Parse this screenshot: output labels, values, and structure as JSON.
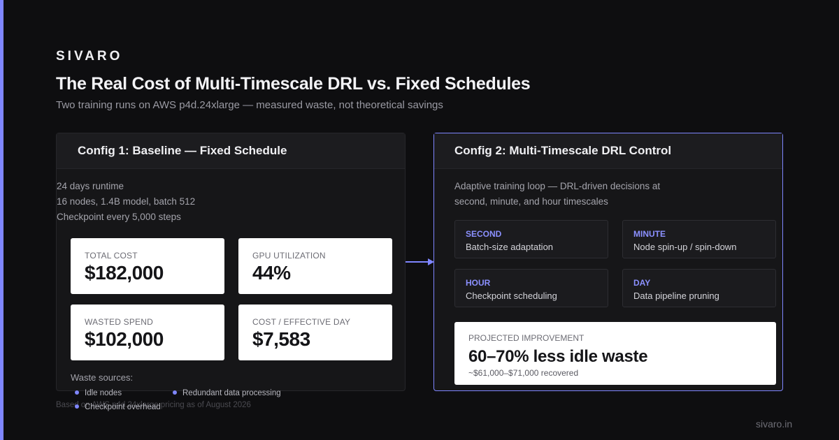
{
  "brand": "SIVARO",
  "title": "The Real Cost of Multi-Timescale DRL vs. Fixed Schedules",
  "subtitle": "Two training runs on AWS p4d.24xlarge — measured waste, not theoretical savings",
  "config1": {
    "header": "Config 1: Baseline — Fixed Schedule",
    "meta": [
      "24 days runtime",
      "16 nodes, 1.4B model, batch 512",
      "Checkpoint every 5,000 steps"
    ],
    "stats": [
      {
        "label": "TOTAL COST",
        "value": "$182,000"
      },
      {
        "label": "GPU UTILIZATION",
        "value": "44%"
      },
      {
        "label": "WASTED SPEND",
        "value": "$102,000"
      },
      {
        "label": "COST / EFFECTIVE DAY",
        "value": "$7,583"
      }
    ],
    "waste_title": "Waste sources:",
    "waste_items": [
      "Idle nodes",
      "Redundant data processing",
      "Checkpoint overhead"
    ]
  },
  "config2": {
    "header": "Config 2: Multi-Timescale DRL Control",
    "desc_line1": "Adaptive training loop — DRL-driven decisions at",
    "desc_line2": "second, minute, and hour timescales",
    "tiles": [
      {
        "label": "SECOND",
        "desc": "Batch-size adaptation"
      },
      {
        "label": "MINUTE",
        "desc": "Node spin-up / spin-down"
      },
      {
        "label": "HOUR",
        "desc": "Checkpoint scheduling"
      },
      {
        "label": "DAY",
        "desc": "Data pipeline pruning"
      }
    ],
    "improvement": {
      "label": "PROJECTED IMPROVEMENT",
      "value": "60–70% less idle waste",
      "sub": "~$61,000–$71,000 recovered"
    }
  },
  "footnote": "Based on AWS p4d.24xlarge pricing as of August 2026",
  "site": "sivaro.in",
  "colors": {
    "accent": "#7f86ff",
    "background": "#0e0e10"
  }
}
